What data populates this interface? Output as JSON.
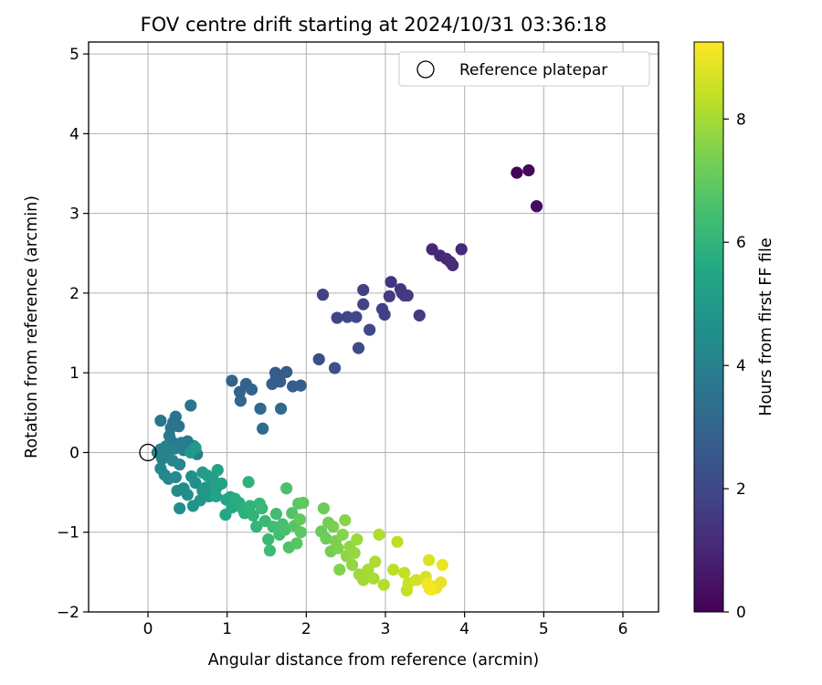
{
  "chart_data": {
    "type": "scatter",
    "title": "FOV centre drift starting at 2024/10/31 03:36:18",
    "xlabel": "Angular distance from reference (arcmin)",
    "ylabel": "Rotation from reference (arcmin)",
    "xlim": [
      -0.75,
      6.45
    ],
    "ylim": [
      -2.0,
      5.15
    ],
    "xticks": [
      0,
      1,
      2,
      3,
      4,
      5,
      6
    ],
    "yticks": [
      -2,
      -1,
      0,
      1,
      2,
      3,
      4,
      5
    ],
    "grid": true,
    "legend": {
      "placement": "top-right",
      "entries": [
        "Reference platepar"
      ]
    },
    "colorbar": {
      "label": "Hours from first FF file",
      "colormap": "viridis",
      "range": [
        0,
        9.25
      ],
      "ticks": [
        0,
        2,
        4,
        6,
        8
      ]
    },
    "reference_point": {
      "x": 0,
      "y": 0
    },
    "series": [
      {
        "points": [
          [
            4.66,
            3.51,
            0.1
          ],
          [
            4.81,
            3.54,
            0.2
          ],
          [
            4.91,
            3.09,
            0.3
          ],
          [
            3.59,
            2.55,
            1.0
          ],
          [
            3.69,
            2.47,
            1.05
          ],
          [
            3.77,
            2.43,
            1.1
          ],
          [
            3.82,
            2.39,
            1.15
          ],
          [
            3.85,
            2.35,
            1.2
          ],
          [
            3.96,
            2.55,
            1.1
          ],
          [
            3.07,
            2.14,
            1.4
          ],
          [
            3.19,
            2.05,
            1.45
          ],
          [
            3.21,
            2.0,
            1.5
          ],
          [
            3.24,
            1.97,
            1.5
          ],
          [
            3.28,
            1.97,
            1.55
          ],
          [
            3.05,
            1.96,
            1.6
          ],
          [
            3.43,
            1.72,
            1.6
          ],
          [
            2.96,
            1.8,
            1.7
          ],
          [
            2.99,
            1.73,
            1.75
          ],
          [
            2.21,
            1.98,
            1.8
          ],
          [
            2.72,
            2.04,
            1.8
          ],
          [
            2.72,
            1.86,
            1.85
          ],
          [
            2.39,
            1.69,
            1.9
          ],
          [
            2.52,
            1.7,
            1.95
          ],
          [
            2.63,
            1.7,
            2.0
          ],
          [
            2.8,
            1.54,
            2.0
          ],
          [
            2.66,
            1.31,
            2.1
          ],
          [
            2.16,
            1.17,
            2.2
          ],
          [
            2.36,
            1.06,
            2.3
          ],
          [
            1.61,
            1.0,
            2.6
          ],
          [
            1.75,
            1.01,
            2.65
          ],
          [
            1.62,
            0.95,
            2.7
          ],
          [
            1.93,
            0.84,
            2.7
          ],
          [
            1.83,
            0.83,
            2.75
          ],
          [
            1.67,
            0.89,
            2.75
          ],
          [
            1.57,
            0.86,
            2.8
          ],
          [
            1.06,
            0.9,
            2.9
          ],
          [
            1.24,
            0.86,
            2.9
          ],
          [
            1.16,
            0.76,
            2.95
          ],
          [
            1.31,
            0.79,
            3.0
          ],
          [
            1.17,
            0.65,
            3.05
          ],
          [
            1.42,
            0.55,
            3.1
          ],
          [
            1.68,
            0.55,
            3.15
          ],
          [
            1.45,
            0.3,
            3.2
          ],
          [
            0.29,
            0.31,
            3.5
          ],
          [
            0.32,
            0.38,
            3.55
          ],
          [
            0.35,
            0.45,
            3.5
          ],
          [
            0.39,
            0.33,
            3.55
          ],
          [
            0.16,
            0.4,
            3.6
          ],
          [
            0.54,
            0.59,
            3.6
          ],
          [
            0.27,
            0.21,
            3.7
          ],
          [
            0.3,
            0.14,
            3.75
          ],
          [
            0.42,
            0.12,
            3.8
          ],
          [
            0.5,
            0.14,
            3.8
          ],
          [
            0.58,
            0.08,
            3.85
          ],
          [
            0.62,
            -0.02,
            3.9
          ],
          [
            0.45,
            0.03,
            3.9
          ],
          [
            0.34,
            0.05,
            3.95
          ],
          [
            0.23,
            0.08,
            4.0
          ],
          [
            0.16,
            0.04,
            4.0
          ],
          [
            0.12,
            0.0,
            4.05
          ],
          [
            0.18,
            -0.08,
            4.1
          ],
          [
            0.25,
            -0.04,
            4.1
          ],
          [
            0.31,
            -0.1,
            4.15
          ],
          [
            0.4,
            -0.15,
            4.2
          ],
          [
            0.16,
            -0.2,
            4.2
          ],
          [
            0.21,
            -0.28,
            4.25
          ],
          [
            0.26,
            -0.33,
            4.3
          ],
          [
            0.35,
            -0.31,
            4.35
          ],
          [
            0.37,
            -0.48,
            4.4
          ],
          [
            0.45,
            -0.45,
            4.45
          ],
          [
            0.5,
            -0.53,
            4.5
          ],
          [
            0.4,
            -0.7,
            4.5
          ],
          [
            0.55,
            -0.3,
            4.55
          ],
          [
            0.6,
            -0.38,
            4.6
          ],
          [
            0.57,
            -0.67,
            4.7
          ],
          [
            0.66,
            -0.6,
            4.75
          ],
          [
            0.69,
            -0.48,
            4.8
          ],
          [
            0.73,
            -0.44,
            4.85
          ],
          [
            0.77,
            -0.55,
            4.9
          ],
          [
            0.54,
            0.0,
            4.95
          ],
          [
            0.6,
            0.06,
            5.0
          ],
          [
            0.69,
            -0.25,
            5.05
          ],
          [
            0.75,
            -0.29,
            5.1
          ],
          [
            0.82,
            -0.33,
            5.15
          ],
          [
            0.86,
            -0.45,
            5.2
          ],
          [
            0.88,
            -0.22,
            5.25
          ],
          [
            0.93,
            -0.39,
            5.3
          ],
          [
            0.86,
            -0.55,
            5.35
          ],
          [
            0.99,
            -0.59,
            5.45
          ],
          [
            1.04,
            -0.56,
            5.5
          ],
          [
            0.98,
            -0.78,
            5.55
          ],
          [
            1.06,
            -0.69,
            5.6
          ],
          [
            1.1,
            -0.58,
            5.7
          ],
          [
            1.15,
            -0.63,
            5.75
          ],
          [
            1.19,
            -0.7,
            5.8
          ],
          [
            1.22,
            -0.76,
            5.85
          ],
          [
            1.27,
            -0.37,
            5.9
          ],
          [
            1.29,
            -0.67,
            5.95
          ],
          [
            1.33,
            -0.79,
            6.0
          ],
          [
            1.37,
            -0.93,
            6.05
          ],
          [
            1.41,
            -0.64,
            6.1
          ],
          [
            1.44,
            -0.7,
            6.15
          ],
          [
            1.48,
            -0.86,
            6.2
          ],
          [
            1.52,
            -1.09,
            6.25
          ],
          [
            1.54,
            -1.23,
            6.3
          ],
          [
            1.58,
            -0.93,
            6.35
          ],
          [
            1.62,
            -0.77,
            6.4
          ],
          [
            1.66,
            -1.03,
            6.45
          ],
          [
            1.7,
            -0.9,
            6.5
          ],
          [
            1.73,
            -0.97,
            6.55
          ],
          [
            1.75,
            -0.45,
            6.6
          ],
          [
            1.78,
            -1.19,
            6.65
          ],
          [
            1.82,
            -0.76,
            6.7
          ],
          [
            1.85,
            -0.92,
            6.75
          ],
          [
            1.88,
            -1.14,
            6.8
          ],
          [
            1.9,
            -0.64,
            6.85
          ],
          [
            1.93,
            -1.0,
            6.9
          ],
          [
            1.96,
            -0.63,
            6.95
          ],
          [
            1.92,
            -0.84,
            7.0
          ],
          [
            2.19,
            -0.99,
            7.1
          ],
          [
            2.22,
            -0.7,
            7.15
          ],
          [
            2.25,
            -1.08,
            7.2
          ],
          [
            2.28,
            -0.88,
            7.25
          ],
          [
            2.31,
            -1.24,
            7.3
          ],
          [
            2.34,
            -0.93,
            7.35
          ],
          [
            2.37,
            -1.11,
            7.4
          ],
          [
            2.4,
            -1.2,
            7.45
          ],
          [
            2.42,
            -1.47,
            7.5
          ],
          [
            2.46,
            -1.03,
            7.55
          ],
          [
            2.49,
            -0.85,
            7.6
          ],
          [
            2.51,
            -1.3,
            7.65
          ],
          [
            2.55,
            -1.18,
            7.7
          ],
          [
            2.58,
            -1.41,
            7.75
          ],
          [
            2.61,
            -1.26,
            7.8
          ],
          [
            2.64,
            -1.09,
            7.85
          ],
          [
            2.67,
            -1.53,
            7.9
          ],
          [
            2.72,
            -1.6,
            7.95
          ],
          [
            2.78,
            -1.47,
            8.0
          ],
          [
            2.85,
            -1.58,
            8.05
          ],
          [
            2.87,
            -1.37,
            8.1
          ],
          [
            2.92,
            -1.03,
            8.15
          ],
          [
            2.98,
            -1.66,
            8.2
          ],
          [
            3.1,
            -1.47,
            8.3
          ],
          [
            3.15,
            -1.12,
            8.35
          ],
          [
            3.24,
            -1.51,
            8.4
          ],
          [
            3.27,
            -1.73,
            8.45
          ],
          [
            3.29,
            -1.64,
            8.5
          ],
          [
            3.39,
            -1.6,
            8.6
          ],
          [
            3.51,
            -1.56,
            8.7
          ],
          [
            3.55,
            -1.35,
            8.75
          ],
          [
            3.56,
            -1.71,
            8.8
          ],
          [
            3.6,
            -1.68,
            8.85
          ],
          [
            3.64,
            -1.7,
            8.9
          ],
          [
            3.7,
            -1.63,
            8.95
          ],
          [
            3.72,
            -1.41,
            9.0
          ],
          [
            3.53,
            -1.65,
            9.1
          ],
          [
            3.58,
            -1.72,
            9.15
          ]
        ]
      }
    ]
  }
}
